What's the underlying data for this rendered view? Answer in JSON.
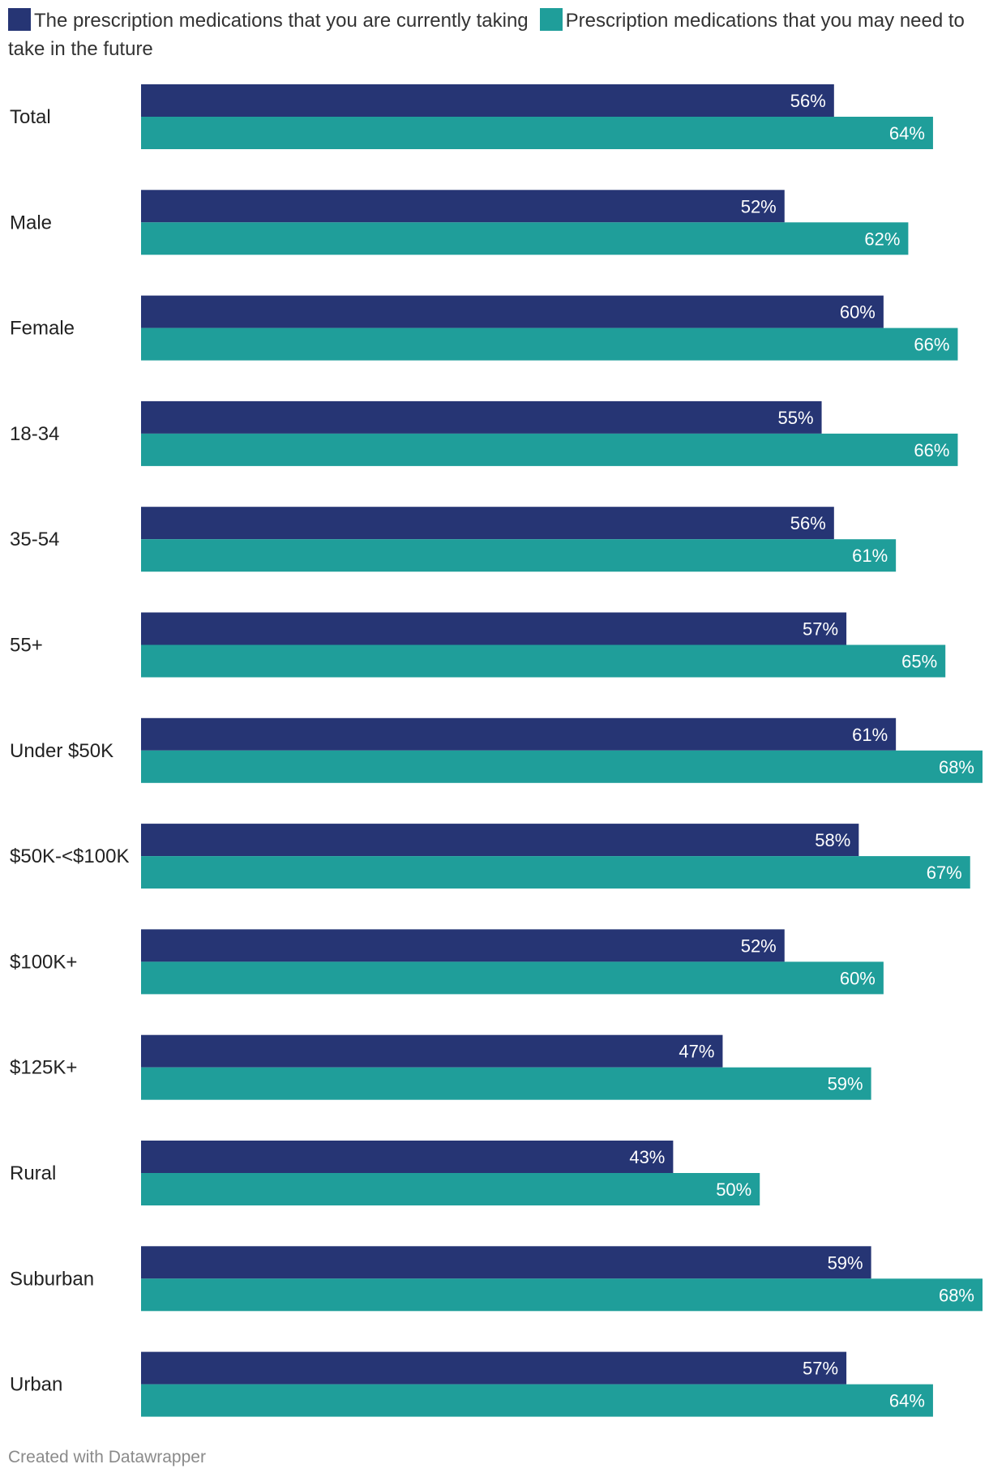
{
  "chart_data": {
    "type": "bar",
    "orientation": "horizontal",
    "categories": [
      "Total",
      "Male",
      "Female",
      "18-34",
      "35-54",
      "55+",
      "Under $50K",
      "$50K-<$100K",
      "$100K+",
      "$125K+",
      "Rural",
      "Suburban",
      "Urban"
    ],
    "series": [
      {
        "name": "The prescription medications that you are currently taking",
        "color": "#263574",
        "values": [
          56,
          52,
          60,
          55,
          56,
          57,
          61,
          58,
          52,
          47,
          43,
          59,
          57
        ]
      },
      {
        "name": "Prescription medications that you may need to take in the future",
        "color": "#1f9e9a",
        "values": [
          64,
          62,
          66,
          66,
          61,
          65,
          68,
          67,
          60,
          59,
          50,
          68,
          64
        ]
      }
    ],
    "value_suffix": "%",
    "xlim": [
      0,
      68
    ],
    "legend": "top",
    "grid": false
  },
  "footer": {
    "credit": "Created with Datawrapper"
  }
}
